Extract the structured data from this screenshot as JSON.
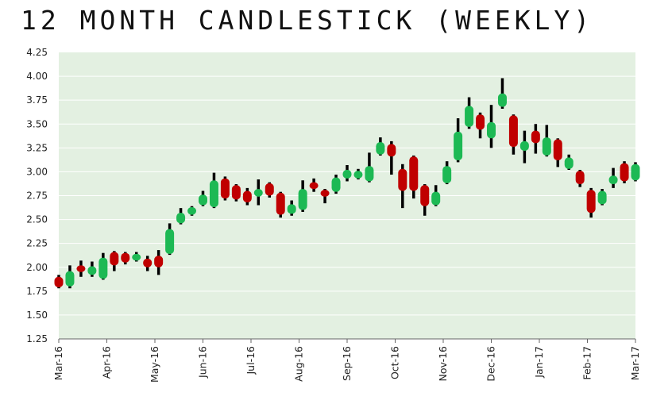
{
  "chart_data": {
    "type": "candlestick",
    "title": "12 MONTH CANDLESTICK (WEEKLY)",
    "xlabel": "",
    "ylabel": "",
    "ylim": [
      1.25,
      4.25
    ],
    "yticks": [
      "1.25",
      "1.50",
      "1.75",
      "2.00",
      "2.25",
      "2.50",
      "2.75",
      "3.00",
      "3.25",
      "3.50",
      "3.75",
      "4.00",
      "4.25"
    ],
    "xticks": [
      "Mar-16",
      "Apr-16",
      "May-16",
      "Jun-16",
      "Jul-16",
      "Aug-16",
      "Sep-16",
      "Oct-16",
      "Nov-16",
      "Dec-16",
      "Jan-17",
      "Feb-17",
      "Mar-17"
    ],
    "grid": "horizontal",
    "colors": {
      "up": "#1db954",
      "down": "#c00000",
      "wick": "#000000",
      "plot_bg": "#e3f0e1",
      "grid": "#ffffff"
    },
    "candles": [
      {
        "x": "Mar-16",
        "open": 1.9,
        "high": 1.92,
        "low": 1.78,
        "close": 1.79
      },
      {
        "x": "Mar-16",
        "open": 1.8,
        "high": 2.02,
        "low": 1.78,
        "close": 1.96
      },
      {
        "x": "Mar-16",
        "open": 2.02,
        "high": 2.07,
        "low": 1.9,
        "close": 1.95
      },
      {
        "x": "Mar-16",
        "open": 1.92,
        "high": 2.06,
        "low": 1.9,
        "close": 2.01
      },
      {
        "x": "Apr-16",
        "open": 1.88,
        "high": 2.15,
        "low": 1.87,
        "close": 2.1
      },
      {
        "x": "Apr-16",
        "open": 2.16,
        "high": 2.17,
        "low": 1.96,
        "close": 2.02
      },
      {
        "x": "Apr-16",
        "open": 2.15,
        "high": 2.16,
        "low": 2.03,
        "close": 2.05
      },
      {
        "x": "Apr-16",
        "open": 2.07,
        "high": 2.16,
        "low": 2.06,
        "close": 2.14
      },
      {
        "x": "May-16",
        "open": 2.09,
        "high": 2.12,
        "low": 1.96,
        "close": 2.0
      },
      {
        "x": "May-16",
        "open": 2.12,
        "high": 2.18,
        "low": 1.92,
        "close": 2.0
      },
      {
        "x": "May-16",
        "open": 2.14,
        "high": 2.46,
        "low": 2.13,
        "close": 2.4
      },
      {
        "x": "May-16",
        "open": 2.46,
        "high": 2.62,
        "low": 2.45,
        "close": 2.57
      },
      {
        "x": "Jun-16",
        "open": 2.55,
        "high": 2.64,
        "low": 2.54,
        "close": 2.63
      },
      {
        "x": "Jun-16",
        "open": 2.65,
        "high": 2.8,
        "low": 2.64,
        "close": 2.76
      },
      {
        "x": "Jun-16",
        "open": 2.63,
        "high": 2.99,
        "low": 2.62,
        "close": 2.91
      },
      {
        "x": "Jun-16",
        "open": 2.93,
        "high": 2.95,
        "low": 2.7,
        "close": 2.72
      },
      {
        "x": "Jul-16",
        "open": 2.86,
        "high": 2.87,
        "low": 2.69,
        "close": 2.71
      },
      {
        "x": "Jul-16",
        "open": 2.8,
        "high": 2.83,
        "low": 2.65,
        "close": 2.68
      },
      {
        "x": "Jul-16",
        "open": 2.74,
        "high": 2.92,
        "low": 2.65,
        "close": 2.82
      },
      {
        "x": "Jul-16",
        "open": 2.88,
        "high": 2.89,
        "low": 2.73,
        "close": 2.75
      },
      {
        "x": "Aug-16",
        "open": 2.78,
        "high": 2.79,
        "low": 2.52,
        "close": 2.55
      },
      {
        "x": "Aug-16",
        "open": 2.56,
        "high": 2.7,
        "low": 2.54,
        "close": 2.66
      },
      {
        "x": "Aug-16",
        "open": 2.6,
        "high": 2.91,
        "low": 2.58,
        "close": 2.82
      },
      {
        "x": "Aug-16",
        "open": 2.89,
        "high": 2.93,
        "low": 2.79,
        "close": 2.82
      },
      {
        "x": "Sep-16",
        "open": 2.81,
        "high": 2.82,
        "low": 2.67,
        "close": 2.74
      },
      {
        "x": "Sep-16",
        "open": 2.79,
        "high": 2.97,
        "low": 2.77,
        "close": 2.94
      },
      {
        "x": "Sep-16",
        "open": 2.93,
        "high": 3.07,
        "low": 2.9,
        "close": 3.02
      },
      {
        "x": "Sep-16",
        "open": 2.93,
        "high": 3.03,
        "low": 2.92,
        "close": 3.01
      },
      {
        "x": "Oct-16",
        "open": 2.9,
        "high": 3.2,
        "low": 2.89,
        "close": 3.06
      },
      {
        "x": "Oct-16",
        "open": 3.18,
        "high": 3.36,
        "low": 3.17,
        "close": 3.31
      },
      {
        "x": "Oct-16",
        "open": 3.29,
        "high": 3.32,
        "low": 2.97,
        "close": 3.16
      },
      {
        "x": "Oct-16",
        "open": 3.03,
        "high": 3.08,
        "low": 2.62,
        "close": 2.8
      },
      {
        "x": "Nov-16",
        "open": 3.16,
        "high": 3.17,
        "low": 2.72,
        "close": 2.8
      },
      {
        "x": "Nov-16",
        "open": 2.86,
        "high": 2.87,
        "low": 2.54,
        "close": 2.64
      },
      {
        "x": "Nov-16",
        "open": 2.65,
        "high": 2.86,
        "low": 2.64,
        "close": 2.79
      },
      {
        "x": "Nov-16",
        "open": 2.88,
        "high": 3.11,
        "low": 2.87,
        "close": 3.06
      },
      {
        "x": "Dec-16",
        "open": 3.12,
        "high": 3.56,
        "low": 3.1,
        "close": 3.42
      },
      {
        "x": "Dec-16",
        "open": 3.47,
        "high": 3.78,
        "low": 3.45,
        "close": 3.69
      },
      {
        "x": "Dec-16",
        "open": 3.6,
        "high": 3.62,
        "low": 3.35,
        "close": 3.44
      },
      {
        "x": "Dec-16",
        "open": 3.35,
        "high": 3.7,
        "low": 3.25,
        "close": 3.52
      },
      {
        "x": "Jan-17",
        "open": 3.68,
        "high": 3.98,
        "low": 3.66,
        "close": 3.82
      },
      {
        "x": "Jan-17",
        "open": 3.59,
        "high": 3.6,
        "low": 3.18,
        "close": 3.26
      },
      {
        "x": "Jan-17",
        "open": 3.22,
        "high": 3.43,
        "low": 3.09,
        "close": 3.32
      },
      {
        "x": "Jan-17",
        "open": 3.43,
        "high": 3.5,
        "low": 3.19,
        "close": 3.3
      },
      {
        "x": "Feb-17",
        "open": 3.17,
        "high": 3.49,
        "low": 3.16,
        "close": 3.36
      },
      {
        "x": "Feb-17",
        "open": 3.34,
        "high": 3.35,
        "low": 3.05,
        "close": 3.12
      },
      {
        "x": "Feb-17",
        "open": 3.03,
        "high": 3.18,
        "low": 3.02,
        "close": 3.15
      },
      {
        "x": "Feb-17",
        "open": 3.01,
        "high": 3.02,
        "low": 2.84,
        "close": 2.87
      },
      {
        "x": "Mar-17",
        "open": 2.81,
        "high": 2.83,
        "low": 2.52,
        "close": 2.57
      },
      {
        "x": "Mar-17",
        "open": 2.66,
        "high": 2.82,
        "low": 2.65,
        "close": 2.8
      },
      {
        "x": "Mar-17",
        "open": 2.87,
        "high": 3.04,
        "low": 2.83,
        "close": 2.96
      },
      {
        "x": "Mar-17",
        "open": 3.09,
        "high": 3.11,
        "low": 2.88,
        "close": 2.9
      },
      {
        "x": "Mar-17",
        "open": 2.91,
        "high": 3.1,
        "low": 2.9,
        "close": 3.08
      }
    ]
  }
}
